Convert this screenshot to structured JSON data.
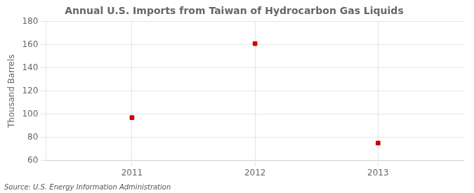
{
  "chart_data": {
    "type": "scatter",
    "title": "Annual U.S. Imports from Taiwan of Hydrocarbon Gas Liquids",
    "ylabel": "Thousand Barrels",
    "source": "Source: U.S. Energy Information Administration",
    "x": [
      2011,
      2012,
      2013
    ],
    "values": [
      97,
      161,
      75
    ],
    "color": "#CC0000",
    "marker": "square",
    "xlim": [
      2010.3,
      2013.7
    ],
    "xticks": [
      2011,
      2012,
      2013
    ],
    "ylim": [
      60,
      180
    ],
    "yticks": [
      60,
      80,
      100,
      120,
      140,
      160,
      180
    ],
    "grid": true
  }
}
